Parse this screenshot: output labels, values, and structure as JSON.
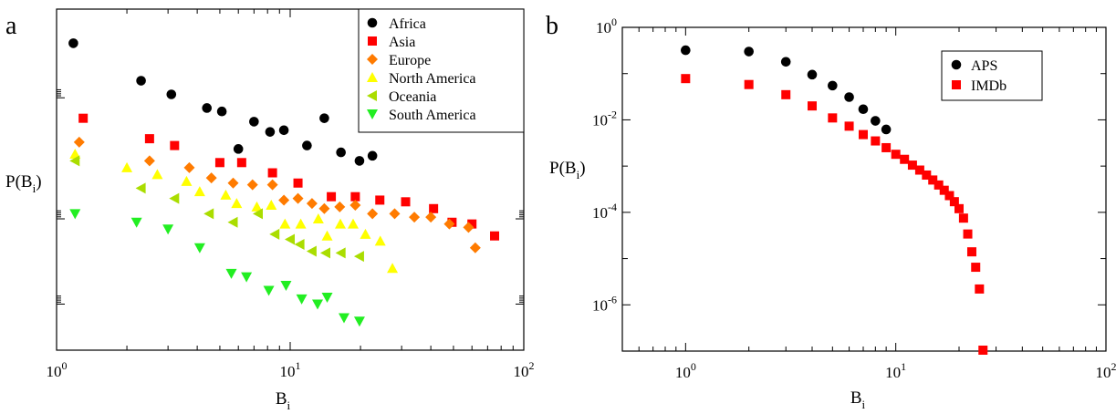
{
  "chart_data": [
    {
      "panel": "a",
      "type": "scatter",
      "title": "",
      "xlabel": "B",
      "xlabel_sub": "i",
      "ylabel": "P(B",
      "ylabel_sub": "i",
      "ylabel_end": ")",
      "xscale": "log",
      "yscale": "log",
      "xlim": [
        1,
        100
      ],
      "ylim": [
        0.0,
        1.0
      ],
      "grid": false,
      "legend_position": "top-right",
      "xticks": [
        {
          "value": 1,
          "base": "10",
          "exp": "0"
        },
        {
          "value": 10,
          "base": "10",
          "exp": "1"
        },
        {
          "value": 100,
          "base": "10",
          "exp": "2"
        }
      ],
      "series": [
        {
          "name": "Africa",
          "marker": "circle",
          "color": "#000000",
          "points": [
            [
              1.18,
              0.9
            ],
            [
              2.3,
              0.79
            ],
            [
              3.1,
              0.75
            ],
            [
              4.4,
              0.71
            ],
            [
              5.1,
              0.7
            ],
            [
              6.0,
              0.59
            ],
            [
              7.0,
              0.67
            ],
            [
              8.2,
              0.64
            ],
            [
              9.4,
              0.645
            ],
            [
              11.8,
              0.6
            ],
            [
              14.0,
              0.68
            ],
            [
              16.5,
              0.58
            ],
            [
              19.8,
              0.555
            ],
            [
              22.5,
              0.57
            ]
          ]
        },
        {
          "name": "Asia",
          "marker": "square",
          "color": "#ff0000",
          "points": [
            [
              1.3,
              0.68
            ],
            [
              2.5,
              0.62
            ],
            [
              3.2,
              0.6
            ],
            [
              5.0,
              0.55
            ],
            [
              6.2,
              0.55
            ],
            [
              8.4,
              0.52
            ],
            [
              10.8,
              0.49
            ],
            [
              15.0,
              0.45
            ],
            [
              19.0,
              0.45
            ],
            [
              24.2,
              0.44
            ],
            [
              31.2,
              0.435
            ],
            [
              41.1,
              0.415
            ],
            [
              49.3,
              0.375
            ],
            [
              60.0,
              0.37
            ],
            [
              75.0,
              0.335
            ]
          ]
        },
        {
          "name": "Europe",
          "marker": "diamond",
          "color": "#ff7b00",
          "points": [
            [
              1.25,
              0.61
            ],
            [
              2.5,
              0.555
            ],
            [
              3.7,
              0.535
            ],
            [
              4.6,
              0.505
            ],
            [
              5.7,
              0.49
            ],
            [
              6.9,
              0.485
            ],
            [
              8.4,
              0.485
            ],
            [
              9.4,
              0.44
            ],
            [
              10.8,
              0.445
            ],
            [
              12.4,
              0.43
            ],
            [
              14.0,
              0.415
            ],
            [
              16.3,
              0.42
            ],
            [
              19.0,
              0.425
            ],
            [
              22.5,
              0.4
            ],
            [
              28.0,
              0.4
            ],
            [
              34.0,
              0.39
            ],
            [
              40.0,
              0.39
            ],
            [
              48.0,
              0.37
            ],
            [
              58.0,
              0.36
            ],
            [
              62.0,
              0.3
            ]
          ]
        },
        {
          "name": "North America",
          "marker": "triangle-up",
          "color": "#ffff00",
          "points": [
            [
              1.2,
              0.575
            ],
            [
              2.0,
              0.535
            ],
            [
              2.7,
              0.515
            ],
            [
              3.6,
              0.495
            ],
            [
              4.1,
              0.465
            ],
            [
              5.3,
              0.455
            ],
            [
              5.9,
              0.43
            ],
            [
              7.2,
              0.42
            ],
            [
              8.3,
              0.425
            ],
            [
              9.5,
              0.37
            ],
            [
              11.1,
              0.37
            ],
            [
              13.2,
              0.385
            ],
            [
              14.4,
              0.335
            ],
            [
              16.4,
              0.37
            ],
            [
              18.6,
              0.37
            ],
            [
              21.0,
              0.34
            ],
            [
              24.3,
              0.32
            ],
            [
              27.4,
              0.24
            ]
          ]
        },
        {
          "name": "Oceania",
          "marker": "triangle-left",
          "color": "#aadd00",
          "points": [
            [
              1.2,
              0.555
            ],
            [
              2.3,
              0.475
            ],
            [
              3.2,
              0.445
            ],
            [
              4.5,
              0.4
            ],
            [
              5.7,
              0.375
            ],
            [
              7.3,
              0.4
            ],
            [
              8.6,
              0.34
            ],
            [
              10.0,
              0.325
            ],
            [
              11.0,
              0.31
            ],
            [
              12.4,
              0.29
            ],
            [
              14.2,
              0.285
            ],
            [
              16.5,
              0.285
            ],
            [
              19.8,
              0.275
            ]
          ]
        },
        {
          "name": "South America",
          "marker": "triangle-down",
          "color": "#22ee22",
          "points": [
            [
              1.2,
              0.4
            ],
            [
              2.2,
              0.375
            ],
            [
              3.0,
              0.355
            ],
            [
              4.1,
              0.3
            ],
            [
              5.6,
              0.225
            ],
            [
              6.5,
              0.215
            ],
            [
              8.1,
              0.175
            ],
            [
              9.6,
              0.19
            ],
            [
              11.2,
              0.15
            ],
            [
              13.1,
              0.135
            ],
            [
              14.4,
              0.155
            ],
            [
              17.0,
              0.095
            ],
            [
              19.8,
              0.085
            ]
          ]
        }
      ]
    },
    {
      "panel": "b",
      "type": "scatter",
      "title": "",
      "xlabel": "B",
      "xlabel_sub": "i",
      "ylabel": "P(B",
      "ylabel_sub": "i",
      "ylabel_end": ")",
      "xscale": "log",
      "yscale": "log",
      "xlim": [
        0.5,
        100
      ],
      "ylim": [
        1e-07,
        1
      ],
      "grid": false,
      "legend_position": "top-right",
      "xticks": [
        {
          "value": 1,
          "base": "10",
          "exp": "0"
        },
        {
          "value": 10,
          "base": "10",
          "exp": "1"
        },
        {
          "value": 100,
          "base": "10",
          "exp": "2"
        }
      ],
      "yticks": [
        {
          "value": 1e-06,
          "base": "10",
          "exp": "-6"
        },
        {
          "value": 0.0001,
          "base": "10",
          "exp": "-4"
        },
        {
          "value": 0.01,
          "base": "10",
          "exp": "-2"
        },
        {
          "value": 1,
          "base": "10",
          "exp": "0"
        }
      ],
      "series": [
        {
          "name": "APS",
          "marker": "circle",
          "color": "#000000",
          "points": [
            [
              1,
              0.32
            ],
            [
              2,
              0.3
            ],
            [
              3,
              0.18
            ],
            [
              4,
              0.095
            ],
            [
              5,
              0.055
            ],
            [
              6,
              0.031
            ],
            [
              7,
              0.017
            ],
            [
              8,
              0.0095
            ],
            [
              9,
              0.0062
            ]
          ]
        },
        {
          "name": "IMDb",
          "marker": "square",
          "color": "#ff0000",
          "points": [
            [
              1,
              0.078
            ],
            [
              2,
              0.058
            ],
            [
              3,
              0.035
            ],
            [
              4,
              0.02
            ],
            [
              5,
              0.011
            ],
            [
              6,
              0.0073
            ],
            [
              7,
              0.0048
            ],
            [
              8,
              0.0035
            ],
            [
              9,
              0.0025
            ],
            [
              10,
              0.0018
            ],
            [
              11,
              0.0014
            ],
            [
              12,
              0.00105
            ],
            [
              13,
              0.00082
            ],
            [
              14,
              0.00064
            ],
            [
              15,
              0.0005
            ],
            [
              16,
              0.00039
            ],
            [
              17,
              0.0003
            ],
            [
              18,
              0.00023
            ],
            [
              19,
              0.00017
            ],
            [
              20,
              0.00012
            ],
            [
              21,
              7.5e-05
            ],
            [
              22,
              3.4e-05
            ],
            [
              23,
              1.4e-05
            ],
            [
              24,
              6.5e-06
            ],
            [
              25,
              2.2e-06
            ],
            [
              26,
              1e-07
            ]
          ]
        }
      ]
    }
  ],
  "panels": {
    "a": {
      "label": "a"
    },
    "b": {
      "label": "b"
    }
  }
}
